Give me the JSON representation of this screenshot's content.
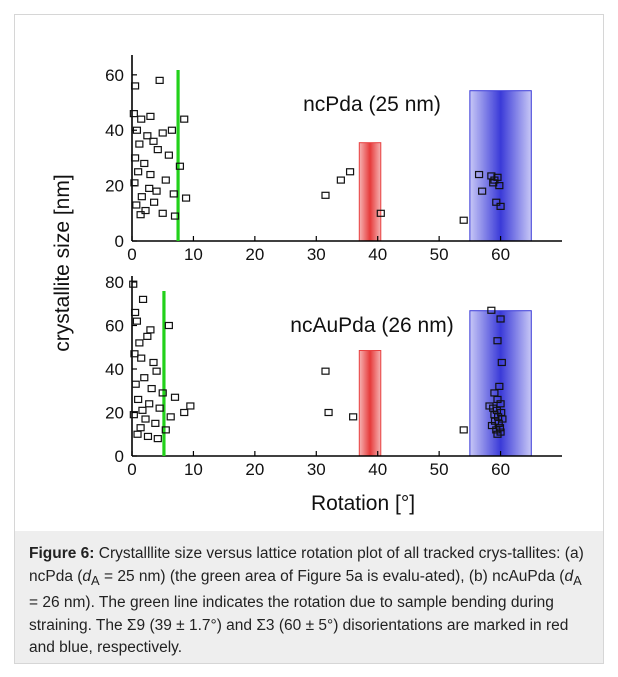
{
  "chart_data": [
    {
      "type": "scatter",
      "title": "ncPda (25 nm)",
      "xlim": [
        0,
        70
      ],
      "ylim": [
        0,
        65
      ],
      "x_ticks": [
        0,
        10,
        20,
        30,
        40,
        50,
        60
      ],
      "y_ticks": [
        0,
        20,
        40,
        60
      ],
      "green_line_x": 7.5,
      "sigma9_band": [
        37,
        40.5
      ],
      "sigma3_band": [
        55,
        65
      ],
      "points": [
        {
          "x": 0.5,
          "y": 56
        },
        {
          "x": 4.5,
          "y": 58
        },
        {
          "x": 0.3,
          "y": 46
        },
        {
          "x": 1.5,
          "y": 44
        },
        {
          "x": 3.0,
          "y": 45
        },
        {
          "x": 8.5,
          "y": 44
        },
        {
          "x": 0.8,
          "y": 40
        },
        {
          "x": 2.5,
          "y": 38
        },
        {
          "x": 5.0,
          "y": 39
        },
        {
          "x": 6.5,
          "y": 40
        },
        {
          "x": 1.2,
          "y": 35
        },
        {
          "x": 3.5,
          "y": 36
        },
        {
          "x": 4.2,
          "y": 33
        },
        {
          "x": 6.0,
          "y": 31
        },
        {
          "x": 0.5,
          "y": 30
        },
        {
          "x": 2.0,
          "y": 28
        },
        {
          "x": 7.8,
          "y": 27
        },
        {
          "x": 1.0,
          "y": 25
        },
        {
          "x": 3.0,
          "y": 24
        },
        {
          "x": 5.5,
          "y": 22
        },
        {
          "x": 0.4,
          "y": 21
        },
        {
          "x": 2.8,
          "y": 19
        },
        {
          "x": 4.0,
          "y": 18
        },
        {
          "x": 6.8,
          "y": 17
        },
        {
          "x": 1.6,
          "y": 16
        },
        {
          "x": 3.6,
          "y": 14
        },
        {
          "x": 0.7,
          "y": 13
        },
        {
          "x": 2.2,
          "y": 11
        },
        {
          "x": 5.0,
          "y": 10
        },
        {
          "x": 7.0,
          "y": 9
        },
        {
          "x": 8.8,
          "y": 15.5
        },
        {
          "x": 1.4,
          "y": 9.5
        },
        {
          "x": 31.5,
          "y": 16.5
        },
        {
          "x": 34.0,
          "y": 22
        },
        {
          "x": 35.5,
          "y": 25
        },
        {
          "x": 40.5,
          "y": 10
        },
        {
          "x": 54.0,
          "y": 7.5
        },
        {
          "x": 56.5,
          "y": 24
        },
        {
          "x": 57.0,
          "y": 18
        },
        {
          "x": 58.5,
          "y": 23.5
        },
        {
          "x": 59.0,
          "y": 22
        },
        {
          "x": 59.5,
          "y": 23
        },
        {
          "x": 58.8,
          "y": 21
        },
        {
          "x": 59.3,
          "y": 14
        },
        {
          "x": 60.0,
          "y": 12.5
        },
        {
          "x": 59.8,
          "y": 20
        }
      ]
    },
    {
      "type": "scatter",
      "title": "ncAuPda (26 nm)",
      "xlim": [
        0,
        70
      ],
      "ylim": [
        0,
        80
      ],
      "x_ticks": [
        0,
        10,
        20,
        30,
        40,
        50,
        60
      ],
      "y_ticks": [
        0,
        20,
        40,
        60,
        80
      ],
      "green_line_x": 5.2,
      "sigma9_band": [
        37,
        40.5
      ],
      "sigma3_band": [
        55,
        65
      ],
      "points": [
        {
          "x": 0.2,
          "y": 79
        },
        {
          "x": 0.5,
          "y": 66
        },
        {
          "x": 1.8,
          "y": 72
        },
        {
          "x": 0.8,
          "y": 62
        },
        {
          "x": 3.0,
          "y": 58
        },
        {
          "x": 6.0,
          "y": 60
        },
        {
          "x": 1.2,
          "y": 52
        },
        {
          "x": 2.5,
          "y": 55
        },
        {
          "x": 0.4,
          "y": 47
        },
        {
          "x": 1.5,
          "y": 45
        },
        {
          "x": 3.5,
          "y": 43
        },
        {
          "x": 4.0,
          "y": 39
        },
        {
          "x": 2.0,
          "y": 36
        },
        {
          "x": 0.6,
          "y": 33
        },
        {
          "x": 3.2,
          "y": 31
        },
        {
          "x": 5.0,
          "y": 29
        },
        {
          "x": 7.0,
          "y": 27
        },
        {
          "x": 1.0,
          "y": 26
        },
        {
          "x": 2.8,
          "y": 24
        },
        {
          "x": 9.5,
          "y": 23
        },
        {
          "x": 4.5,
          "y": 22
        },
        {
          "x": 8.5,
          "y": 20
        },
        {
          "x": 0.3,
          "y": 19
        },
        {
          "x": 2.2,
          "y": 17
        },
        {
          "x": 3.8,
          "y": 15
        },
        {
          "x": 1.4,
          "y": 13
        },
        {
          "x": 5.5,
          "y": 12
        },
        {
          "x": 0.9,
          "y": 10
        },
        {
          "x": 2.6,
          "y": 9
        },
        {
          "x": 4.2,
          "y": 8
        },
        {
          "x": 6.3,
          "y": 18
        },
        {
          "x": 1.7,
          "y": 21
        },
        {
          "x": 31.5,
          "y": 39
        },
        {
          "x": 32.0,
          "y": 20
        },
        {
          "x": 36.0,
          "y": 18
        },
        {
          "x": 54.0,
          "y": 12
        },
        {
          "x": 58.5,
          "y": 67
        },
        {
          "x": 60.0,
          "y": 63
        },
        {
          "x": 59.5,
          "y": 53
        },
        {
          "x": 60.2,
          "y": 43
        },
        {
          "x": 59.8,
          "y": 32
        },
        {
          "x": 59.0,
          "y": 29
        },
        {
          "x": 59.5,
          "y": 26
        },
        {
          "x": 60.0,
          "y": 24
        },
        {
          "x": 58.2,
          "y": 23
        },
        {
          "x": 58.8,
          "y": 22
        },
        {
          "x": 59.4,
          "y": 21
        },
        {
          "x": 60.1,
          "y": 20
        },
        {
          "x": 59.0,
          "y": 19
        },
        {
          "x": 59.6,
          "y": 18
        },
        {
          "x": 60.3,
          "y": 17
        },
        {
          "x": 59.1,
          "y": 16
        },
        {
          "x": 59.7,
          "y": 15
        },
        {
          "x": 58.6,
          "y": 14
        },
        {
          "x": 59.9,
          "y": 13
        },
        {
          "x": 59.3,
          "y": 12
        },
        {
          "x": 60.0,
          "y": 11
        },
        {
          "x": 59.5,
          "y": 10
        }
      ]
    }
  ],
  "axes": {
    "ylabel": "crystallite  size [nm]",
    "xlabel": "Rotation [°]"
  },
  "colors": {
    "green_line": "#22d11a",
    "sigma9_red": "#e84040",
    "sigma3_blue": "#3a3ad8",
    "marker": "#111111"
  },
  "caption": {
    "label": "Figure 6:",
    "seg1": " Crystalllite size versus lattice rotation plot of all tracked crys-tallites: (a) ncPda (",
    "d_symbol": "d",
    "d_sub": "A",
    "seg2": " = 25 nm) (the green area of Figure 5a is evalu-ated), (b) ncAuPda (",
    "seg3": " = 26 nm). The green line indicates the rotation due to sample bending during straining. The Σ9 (39 ± 1.7°) and Σ3 (60 ± 5°) disorientations are marked in red and blue, respectively."
  }
}
